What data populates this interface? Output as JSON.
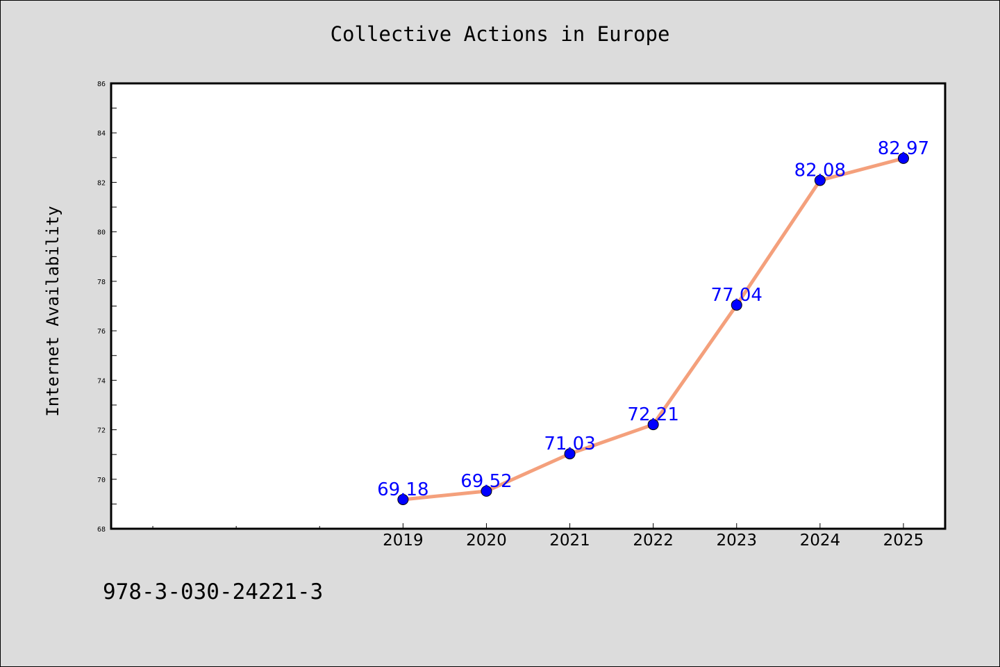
{
  "chart_data": {
    "type": "line",
    "title": "Collective Actions in Europe",
    "xlabel": "",
    "ylabel": "Internet Availability",
    "categories": [
      "2019",
      "2020",
      "2021",
      "2022",
      "2023",
      "2024",
      "2025"
    ],
    "values": [
      69.18,
      69.52,
      71.03,
      72.21,
      77.04,
      82.08,
      82.97
    ],
    "value_labels": [
      "69.18",
      "69.52",
      "71.03",
      "72.21",
      "77.04",
      "82.08",
      "82.97"
    ],
    "ylim": [
      68,
      86
    ],
    "yticks": [
      "68",
      "70",
      "72",
      "74",
      "76",
      "78",
      "80",
      "82",
      "84",
      "86"
    ],
    "grid": false,
    "colors": {
      "line": "#f4a07c",
      "marker": "#0000ff",
      "data_label": "#0000ff",
      "background": "#dcdcdc",
      "plot_area": "#ffffff"
    }
  },
  "footer": {
    "isbn": "978-3-030-24221-3"
  }
}
